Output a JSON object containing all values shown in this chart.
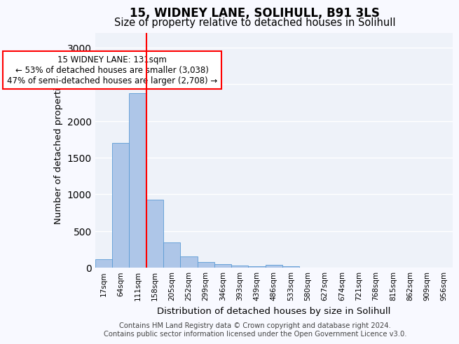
{
  "title1": "15, WIDNEY LANE, SOLIHULL, B91 3LS",
  "title2": "Size of property relative to detached houses in Solihull",
  "xlabel": "Distribution of detached houses by size in Solihull",
  "ylabel": "Number of detached properties",
  "footer1": "Contains HM Land Registry data © Crown copyright and database right 2024.",
  "footer2": "Contains public sector information licensed under the Open Government Licence v3.0.",
  "bar_labels": [
    "17sqm",
    "64sqm",
    "111sqm",
    "158sqm",
    "205sqm",
    "252sqm",
    "299sqm",
    "346sqm",
    "393sqm",
    "439sqm",
    "486sqm",
    "533sqm",
    "580sqm",
    "627sqm",
    "674sqm",
    "721sqm",
    "768sqm",
    "815sqm",
    "862sqm",
    "909sqm",
    "956sqm"
  ],
  "bar_values": [
    110,
    1700,
    2380,
    930,
    340,
    150,
    75,
    50,
    30,
    20,
    35,
    20,
    0,
    0,
    0,
    0,
    0,
    0,
    0,
    0,
    0
  ],
  "bar_color": "#aec6e8",
  "bar_edgecolor": "#5b9bd5",
  "red_line_x": 2.5,
  "annotation_line1": "15 WIDNEY LANE: 131sqm",
  "annotation_line2": "← 53% of detached houses are smaller (3,038)",
  "annotation_line3": "47% of semi-detached houses are larger (2,708) →",
  "ylim": [
    0,
    3200
  ],
  "yticks": [
    0,
    500,
    1000,
    1500,
    2000,
    2500,
    3000
  ],
  "background_color": "#eef2f9",
  "fig_background_color": "#f8f9ff",
  "grid_color": "#ffffff",
  "title_fontsize": 12,
  "subtitle_fontsize": 10.5,
  "axis_label_fontsize": 9.5,
  "tick_fontsize": 7.5,
  "footer_fontsize": 7.2,
  "annotation_fontsize": 8.5
}
